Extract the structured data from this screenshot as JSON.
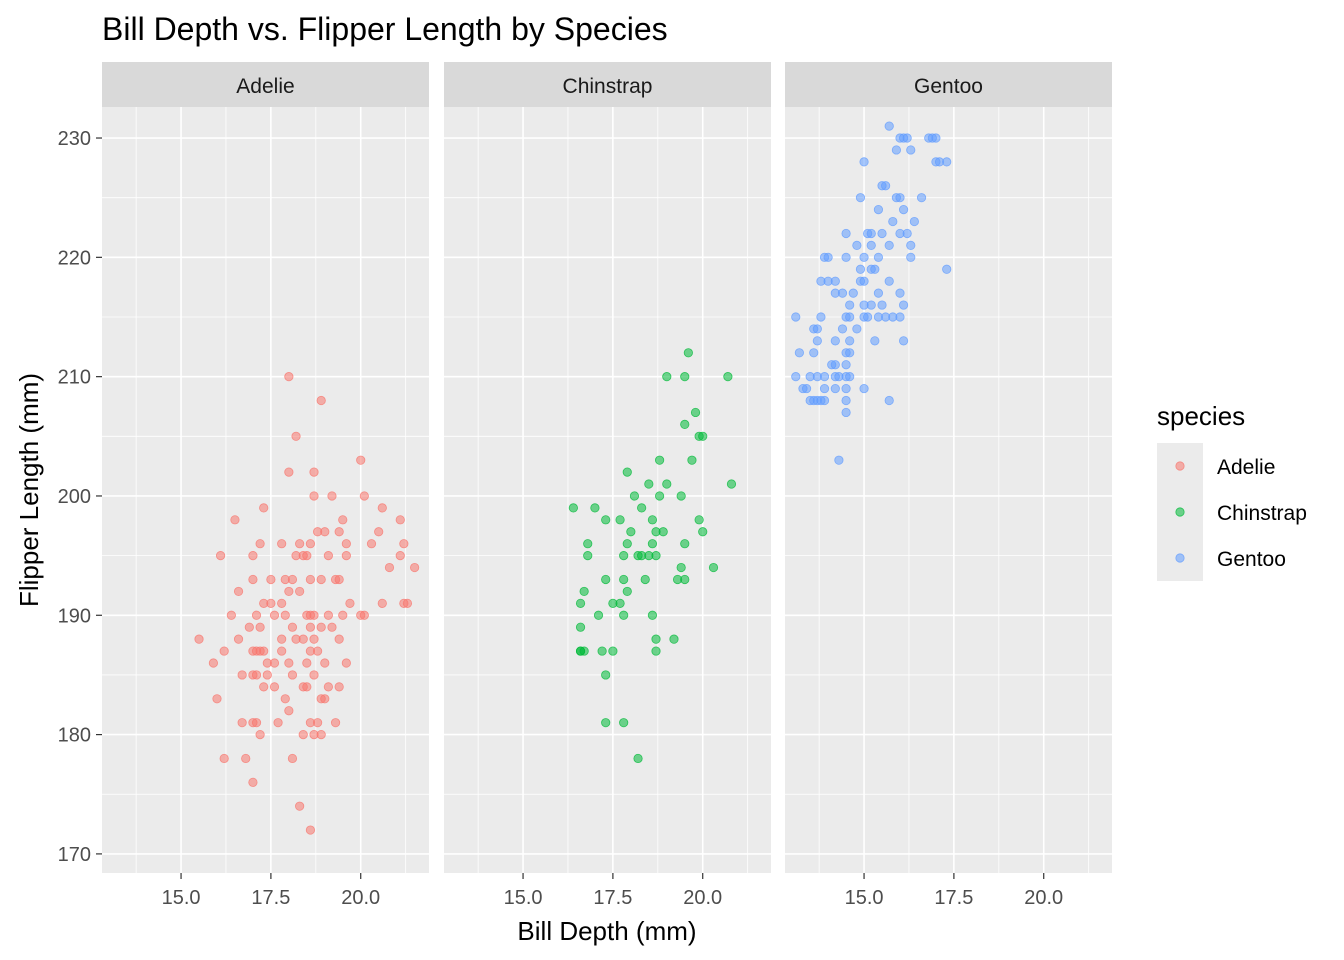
{
  "chart_data": {
    "type": "scatter",
    "title": "Bill Depth vs. Flipper Length by Species",
    "xlabel": "Bill Depth (mm)",
    "ylabel": "Flipper Length (mm)",
    "xlim": [
      12.8,
      21.9
    ],
    "ylim": [
      168.4,
      232.6
    ],
    "x_ticks": [
      "15.0",
      "17.5",
      "20.0"
    ],
    "y_ticks": [
      "170",
      "180",
      "190",
      "200",
      "210",
      "220",
      "230"
    ],
    "grid": true,
    "facets": [
      "Adelie",
      "Chinstrap",
      "Gentoo"
    ],
    "legend": {
      "title": "species",
      "position": "right",
      "entries": [
        "Adelie",
        "Chinstrap",
        "Gentoo"
      ]
    },
    "colors": {
      "Adelie": "#F8766D",
      "Chinstrap": "#00BA38",
      "Gentoo": "#619CFF"
    },
    "series": [
      {
        "name": "Adelie",
        "points": [
          [
            18.0,
            210
          ],
          [
            18.9,
            208
          ],
          [
            18.2,
            205
          ],
          [
            18.0,
            202
          ],
          [
            18.7,
            202
          ],
          [
            20.0,
            203
          ],
          [
            16.5,
            198
          ],
          [
            17.3,
            199
          ],
          [
            19.2,
            200
          ],
          [
            19.5,
            198
          ],
          [
            20.1,
            200
          ],
          [
            21.1,
            198
          ],
          [
            20.6,
            199
          ],
          [
            18.7,
            200
          ],
          [
            18.8,
            197
          ],
          [
            19.0,
            197
          ],
          [
            19.4,
            197
          ],
          [
            21.2,
            196
          ],
          [
            20.5,
            197
          ],
          [
            17.2,
            196
          ],
          [
            17.8,
            196
          ],
          [
            18.3,
            196
          ],
          [
            18.5,
            195
          ],
          [
            18.6,
            196
          ],
          [
            19.1,
            195
          ],
          [
            19.6,
            196
          ],
          [
            20.3,
            196
          ],
          [
            16.1,
            195
          ],
          [
            17.0,
            195
          ],
          [
            18.2,
            195
          ],
          [
            18.4,
            195
          ],
          [
            21.1,
            195
          ],
          [
            19.6,
            195
          ],
          [
            17.5,
            193
          ],
          [
            17.9,
            193
          ],
          [
            18.1,
            193
          ],
          [
            18.6,
            193
          ],
          [
            18.9,
            193
          ],
          [
            19.3,
            193
          ],
          [
            19.4,
            193
          ],
          [
            20.8,
            194
          ],
          [
            21.5,
            194
          ],
          [
            17.3,
            191
          ],
          [
            17.8,
            191
          ],
          [
            18.0,
            192
          ],
          [
            18.3,
            192
          ],
          [
            16.6,
            192
          ],
          [
            17.0,
            193
          ],
          [
            17.5,
            191
          ],
          [
            19.7,
            191
          ],
          [
            20.6,
            191
          ],
          [
            21.2,
            191
          ],
          [
            21.3,
            191
          ],
          [
            16.4,
            190
          ],
          [
            17.1,
            190
          ],
          [
            17.6,
            190
          ],
          [
            17.9,
            190
          ],
          [
            18.5,
            190
          ],
          [
            18.6,
            190
          ],
          [
            18.7,
            190
          ],
          [
            19.1,
            190
          ],
          [
            19.5,
            190
          ],
          [
            20.0,
            190
          ],
          [
            20.1,
            190
          ],
          [
            16.9,
            189
          ],
          [
            17.2,
            189
          ],
          [
            18.1,
            189
          ],
          [
            18.6,
            189
          ],
          [
            18.9,
            189
          ],
          [
            19.2,
            189
          ],
          [
            16.6,
            188
          ],
          [
            15.5,
            188
          ],
          [
            17.8,
            188
          ],
          [
            18.4,
            188
          ],
          [
            18.7,
            188
          ],
          [
            17.1,
            187
          ],
          [
            17.2,
            187
          ],
          [
            17.3,
            187
          ],
          [
            17.8,
            187
          ],
          [
            18.6,
            187
          ],
          [
            18.8,
            187
          ],
          [
            16.2,
            187
          ],
          [
            15.9,
            186
          ],
          [
            17.4,
            186
          ],
          [
            17.6,
            186
          ],
          [
            18.0,
            186
          ],
          [
            18.5,
            186
          ],
          [
            19.0,
            186
          ],
          [
            19.6,
            186
          ],
          [
            16.7,
            185
          ],
          [
            17.0,
            185
          ],
          [
            17.1,
            185
          ],
          [
            17.4,
            185
          ],
          [
            18.1,
            185
          ],
          [
            18.7,
            185
          ],
          [
            19.4,
            184
          ],
          [
            18.4,
            184
          ],
          [
            18.5,
            184
          ],
          [
            19.1,
            184
          ],
          [
            17.6,
            184
          ],
          [
            17.3,
            184
          ],
          [
            17.9,
            183
          ],
          [
            18.9,
            183
          ],
          [
            19.0,
            183
          ],
          [
            16.0,
            183
          ],
          [
            18.0,
            182
          ],
          [
            17.1,
            181
          ],
          [
            17.7,
            181
          ],
          [
            18.6,
            181
          ],
          [
            18.8,
            181
          ],
          [
            19.3,
            181
          ],
          [
            16.7,
            181
          ],
          [
            17.0,
            181
          ],
          [
            17.2,
            180
          ],
          [
            18.4,
            180
          ],
          [
            18.7,
            180
          ],
          [
            18.9,
            180
          ],
          [
            16.2,
            178
          ],
          [
            16.8,
            178
          ],
          [
            18.1,
            178
          ],
          [
            17.0,
            176
          ],
          [
            18.3,
            174
          ],
          [
            18.6,
            172
          ],
          [
            17.0,
            187
          ],
          [
            18.2,
            188
          ],
          [
            19.4,
            188
          ]
        ]
      },
      {
        "name": "Chinstrap",
        "points": [
          [
            19.6,
            212
          ],
          [
            19.0,
            210
          ],
          [
            19.5,
            210
          ],
          [
            20.7,
            210
          ],
          [
            19.8,
            207
          ],
          [
            19.5,
            206
          ],
          [
            19.9,
            205
          ],
          [
            20.0,
            205
          ],
          [
            18.8,
            203
          ],
          [
            19.7,
            203
          ],
          [
            17.9,
            202
          ],
          [
            18.5,
            201
          ],
          [
            19.0,
            201
          ],
          [
            20.8,
            201
          ],
          [
            18.1,
            200
          ],
          [
            18.8,
            200
          ],
          [
            19.4,
            200
          ],
          [
            18.3,
            199
          ],
          [
            16.4,
            199
          ],
          [
            17.0,
            199
          ],
          [
            17.3,
            198
          ],
          [
            17.7,
            198
          ],
          [
            18.6,
            198
          ],
          [
            19.9,
            198
          ],
          [
            18.0,
            197
          ],
          [
            18.7,
            197
          ],
          [
            18.9,
            197
          ],
          [
            20.0,
            197
          ],
          [
            17.9,
            196
          ],
          [
            16.8,
            196
          ],
          [
            18.6,
            196
          ],
          [
            19.5,
            196
          ],
          [
            16.8,
            195
          ],
          [
            17.8,
            195
          ],
          [
            18.2,
            195
          ],
          [
            18.3,
            195
          ],
          [
            18.5,
            195
          ],
          [
            18.7,
            195
          ],
          [
            19.4,
            194
          ],
          [
            20.3,
            194
          ],
          [
            17.3,
            193
          ],
          [
            17.8,
            193
          ],
          [
            18.4,
            193
          ],
          [
            19.3,
            193
          ],
          [
            19.5,
            193
          ],
          [
            16.7,
            192
          ],
          [
            17.9,
            192
          ],
          [
            16.6,
            191
          ],
          [
            17.7,
            191
          ],
          [
            17.5,
            191
          ],
          [
            17.1,
            190
          ],
          [
            17.8,
            190
          ],
          [
            18.6,
            190
          ],
          [
            16.6,
            189
          ],
          [
            18.7,
            188
          ],
          [
            16.6,
            187
          ],
          [
            16.7,
            187
          ],
          [
            17.2,
            187
          ],
          [
            17.5,
            187
          ],
          [
            18.7,
            187
          ],
          [
            17.3,
            185
          ],
          [
            17.3,
            181
          ],
          [
            17.8,
            181
          ],
          [
            18.2,
            178
          ],
          [
            19.2,
            188
          ],
          [
            16.6,
            187
          ]
        ]
      },
      {
        "name": "Gentoo",
        "points": [
          [
            15.7,
            231
          ],
          [
            16.0,
            230
          ],
          [
            16.1,
            230
          ],
          [
            16.2,
            230
          ],
          [
            16.8,
            230
          ],
          [
            17.0,
            230
          ],
          [
            16.9,
            230
          ],
          [
            15.9,
            229
          ],
          [
            16.3,
            229
          ],
          [
            17.0,
            228
          ],
          [
            17.1,
            228
          ],
          [
            17.3,
            228
          ],
          [
            15.0,
            228
          ],
          [
            15.6,
            226
          ],
          [
            15.9,
            225
          ],
          [
            16.0,
            225
          ],
          [
            16.6,
            225
          ],
          [
            15.5,
            226
          ],
          [
            15.4,
            224
          ],
          [
            16.1,
            224
          ],
          [
            14.9,
            225
          ],
          [
            15.8,
            223
          ],
          [
            16.4,
            223
          ],
          [
            14.5,
            222
          ],
          [
            15.1,
            222
          ],
          [
            15.2,
            222
          ],
          [
            15.5,
            222
          ],
          [
            16.0,
            222
          ],
          [
            16.2,
            222
          ],
          [
            14.8,
            221
          ],
          [
            15.2,
            221
          ],
          [
            15.7,
            221
          ],
          [
            16.3,
            221
          ],
          [
            13.9,
            220
          ],
          [
            14.0,
            220
          ],
          [
            14.5,
            220
          ],
          [
            15.0,
            220
          ],
          [
            15.4,
            220
          ],
          [
            16.3,
            220
          ],
          [
            14.9,
            219
          ],
          [
            15.2,
            219
          ],
          [
            15.3,
            219
          ],
          [
            17.3,
            219
          ],
          [
            13.8,
            218
          ],
          [
            14.0,
            218
          ],
          [
            14.2,
            218
          ],
          [
            14.9,
            218
          ],
          [
            15.0,
            218
          ],
          [
            15.7,
            218
          ],
          [
            14.2,
            217
          ],
          [
            14.4,
            217
          ],
          [
            14.7,
            217
          ],
          [
            15.4,
            217
          ],
          [
            16.0,
            217
          ],
          [
            14.6,
            216
          ],
          [
            15.0,
            216
          ],
          [
            15.2,
            216
          ],
          [
            15.5,
            216
          ],
          [
            16.1,
            216
          ],
          [
            13.1,
            215
          ],
          [
            13.8,
            215
          ],
          [
            14.5,
            215
          ],
          [
            14.6,
            215
          ],
          [
            15.0,
            215
          ],
          [
            15.1,
            215
          ],
          [
            15.4,
            215
          ],
          [
            15.6,
            215
          ],
          [
            15.8,
            215
          ],
          [
            16.0,
            215
          ],
          [
            13.6,
            214
          ],
          [
            13.7,
            214
          ],
          [
            14.4,
            214
          ],
          [
            14.8,
            214
          ],
          [
            13.7,
            213
          ],
          [
            14.2,
            213
          ],
          [
            14.6,
            213
          ],
          [
            15.3,
            213
          ],
          [
            16.1,
            213
          ],
          [
            13.2,
            212
          ],
          [
            13.6,
            212
          ],
          [
            14.5,
            212
          ],
          [
            14.6,
            212
          ],
          [
            14.1,
            211
          ],
          [
            14.2,
            211
          ],
          [
            14.5,
            211
          ],
          [
            13.1,
            210
          ],
          [
            13.5,
            210
          ],
          [
            13.7,
            210
          ],
          [
            13.9,
            210
          ],
          [
            14.2,
            210
          ],
          [
            14.3,
            210
          ],
          [
            14.5,
            210
          ],
          [
            14.6,
            210
          ],
          [
            13.4,
            209
          ],
          [
            13.9,
            209
          ],
          [
            14.2,
            209
          ],
          [
            13.3,
            209
          ],
          [
            14.5,
            209
          ],
          [
            15.0,
            209
          ],
          [
            13.5,
            208
          ],
          [
            13.6,
            208
          ],
          [
            13.7,
            208
          ],
          [
            13.8,
            208
          ],
          [
            13.9,
            208
          ],
          [
            14.5,
            208
          ],
          [
            15.7,
            208
          ],
          [
            14.5,
            207
          ],
          [
            14.3,
            203
          ]
        ]
      }
    ]
  }
}
